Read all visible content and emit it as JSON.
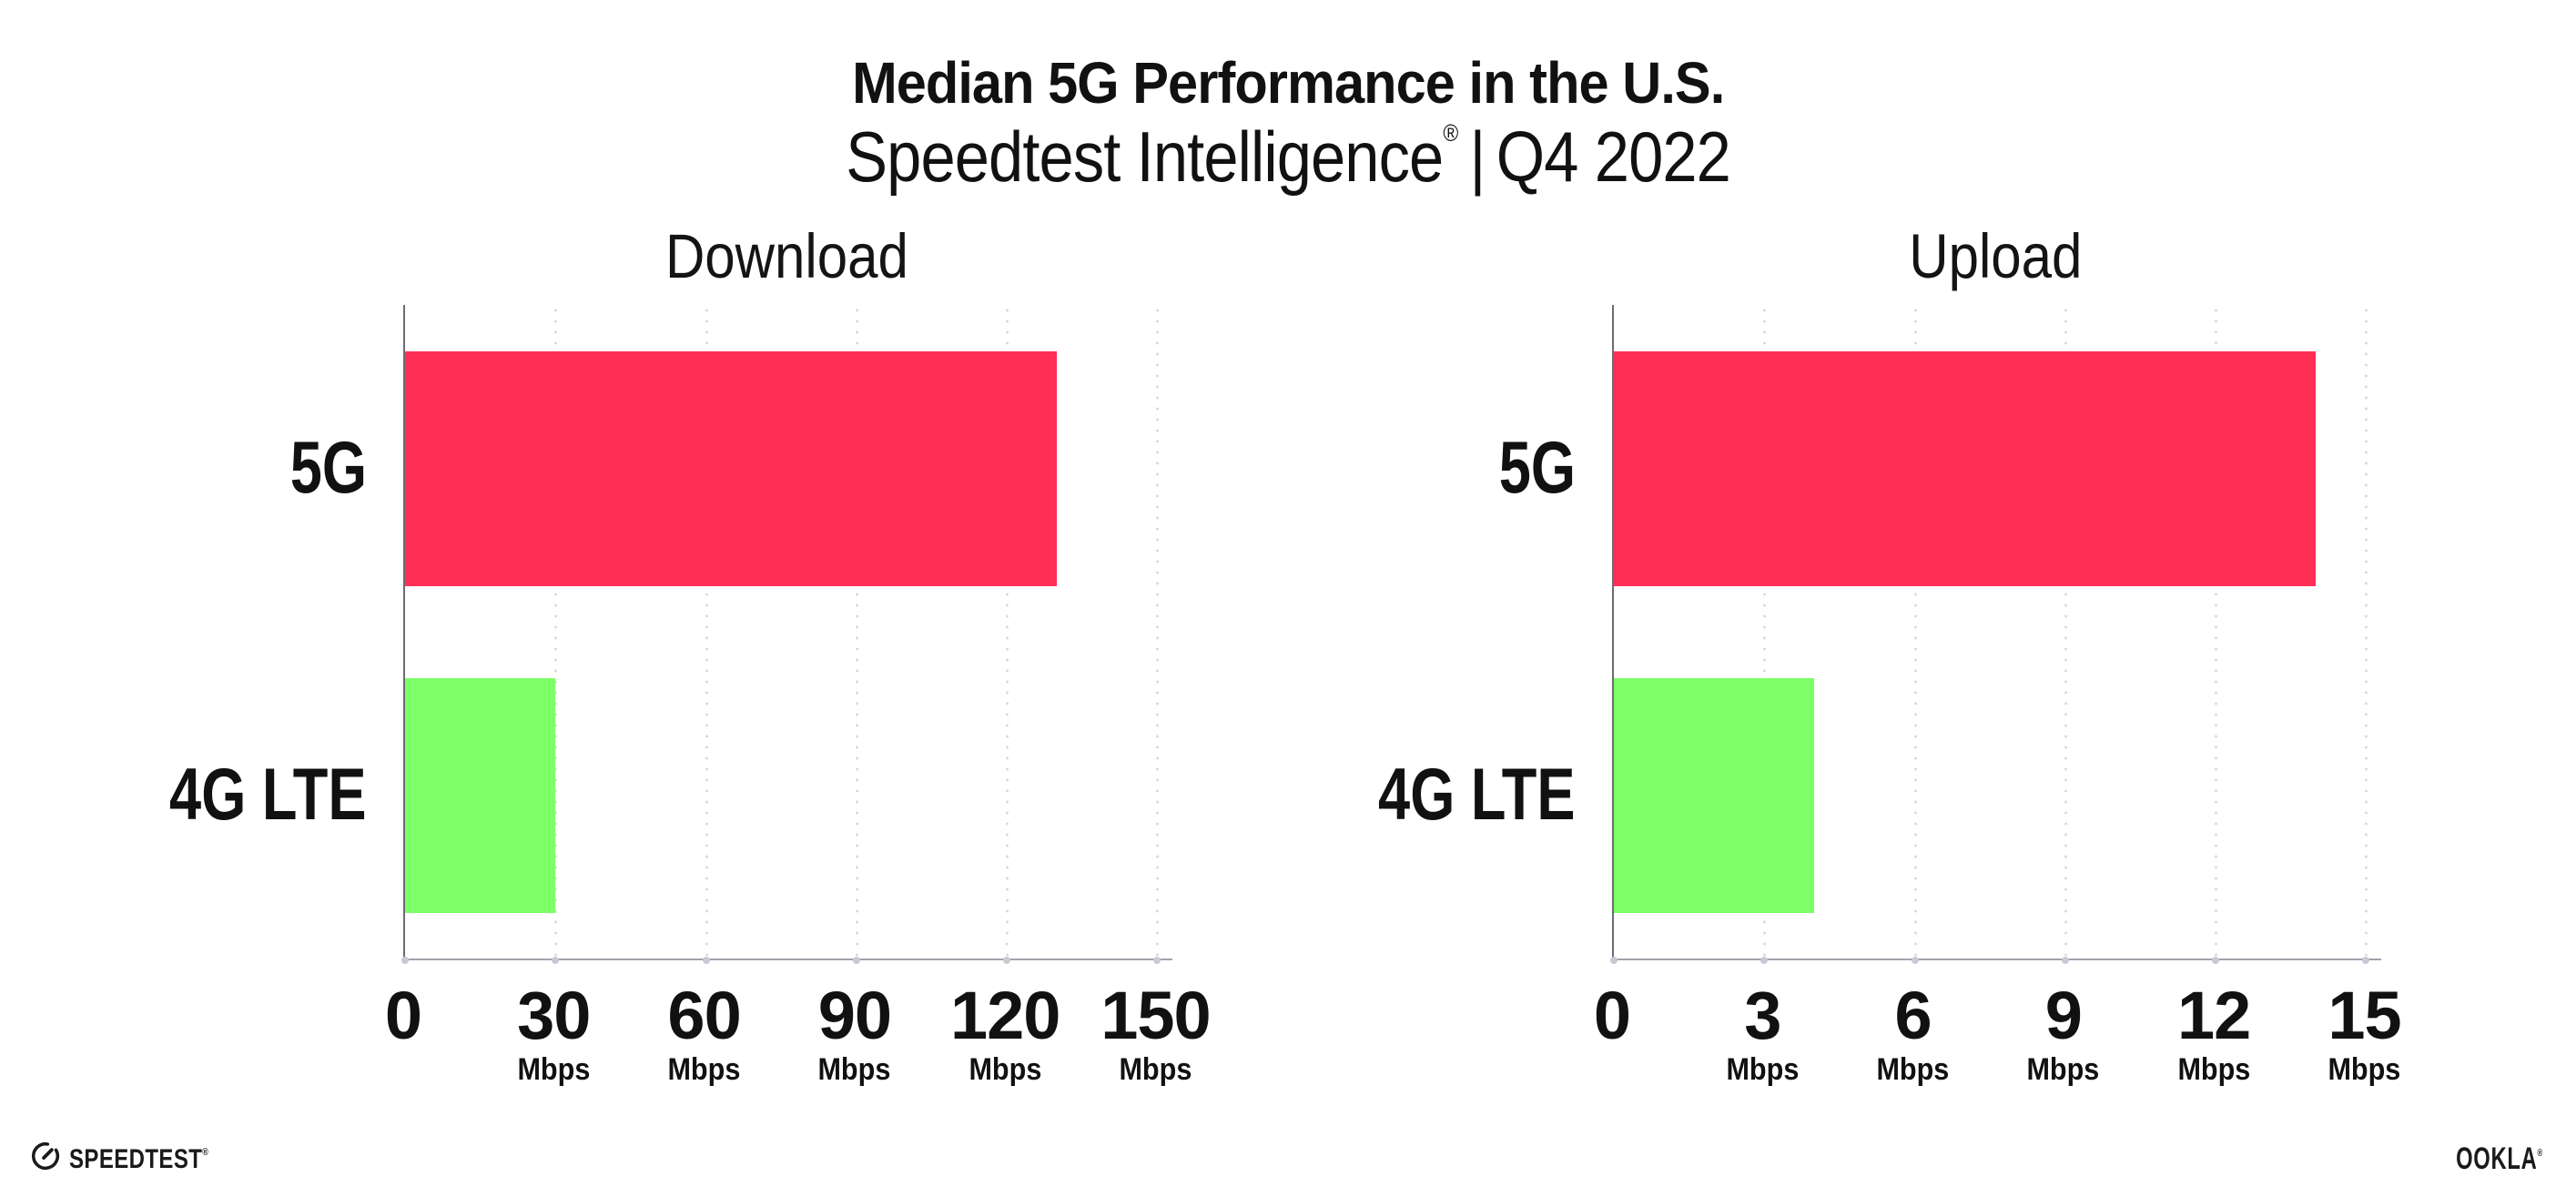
{
  "header": {
    "title": "Median 5G Performance in the U.S.",
    "subtitle": {
      "brand": "Speedtest Intelligence",
      "registered": "®",
      "separator": "|",
      "period": "Q4 2022"
    }
  },
  "chart_data": [
    {
      "type": "bar",
      "orientation": "horizontal",
      "title": "Download",
      "categories": [
        "5G",
        "4G LTE"
      ],
      "values": [
        130,
        30
      ],
      "value_unit": "Mbps",
      "xlim": [
        0,
        153
      ],
      "ticks": [
        0,
        30,
        60,
        90,
        120,
        150
      ],
      "tick_unit": "Mbps",
      "tick_unit_on_zero": false,
      "bar_colors": [
        "#ff2e56",
        "#7dff66"
      ],
      "grid": "dotted-vertical",
      "legend": "none"
    },
    {
      "type": "bar",
      "orientation": "horizontal",
      "title": "Upload",
      "categories": [
        "5G",
        "4G LTE"
      ],
      "values": [
        14,
        4
      ],
      "value_unit": "Mbps",
      "xlim": [
        0,
        15.3
      ],
      "ticks": [
        0,
        3,
        6,
        9,
        12,
        15
      ],
      "tick_unit": "Mbps",
      "tick_unit_on_zero": false,
      "bar_colors": [
        "#ff2e56",
        "#7dff66"
      ],
      "grid": "dotted-vertical",
      "legend": "none"
    }
  ],
  "footer": {
    "speedtest_wordmark": "SPEEDTEST",
    "speedtest_registered": "®",
    "ookla_wordmark": "OOKLA",
    "ookla_registered": "®"
  },
  "colors": {
    "bar_5g": "#ff2e56",
    "bar_4g_lte": "#7dff66",
    "gridline": "#d7d7e2",
    "y_axis": "#6b6b73",
    "x_axis": "#a2a2aa",
    "text": "#111111",
    "background": "#ffffff"
  }
}
